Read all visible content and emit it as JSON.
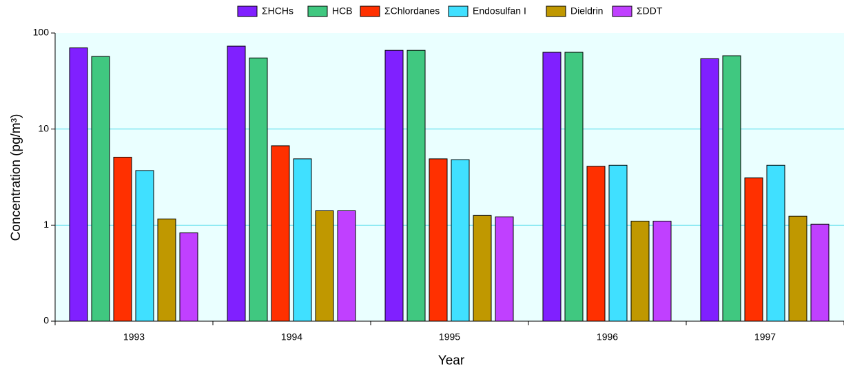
{
  "chart_data": {
    "type": "bar",
    "x_label": "Year",
    "y_label": "Concentration (pg/m³)",
    "log_scale": true,
    "grid": true,
    "legend": "top",
    "categories": [
      "1993",
      "1994",
      "1995",
      "1996",
      "1997"
    ],
    "series": [
      {
        "name": "ΣHCHs",
        "color": "#8020ff",
        "values": [
          70,
          73,
          66,
          63,
          54
        ]
      },
      {
        "name": "HCB",
        "color": "#40c880",
        "values": [
          57,
          55,
          66,
          63,
          58
        ]
      },
      {
        "name": "ΣChlordanes",
        "color": "#ff3000",
        "values": [
          5.1,
          6.7,
          4.9,
          4.1,
          3.1
        ]
      },
      {
        "name": "Endosulfan I",
        "color": "#40e0ff",
        "values": [
          3.7,
          4.9,
          4.8,
          4.2,
          4.2
        ]
      },
      {
        "name": "Dieldrin",
        "color": "#c09800",
        "values": [
          1.16,
          1.41,
          1.26,
          1.1,
          1.24
        ]
      },
      {
        "name": "ΣDDT",
        "color": "#c040ff",
        "values": [
          0.83,
          1.41,
          1.22,
          1.1,
          1.02
        ]
      }
    ],
    "ylim": [
      0.1,
      100
    ],
    "yticks": [
      {
        "value": 0.1,
        "label": "0"
      },
      1,
      10,
      100
    ]
  }
}
